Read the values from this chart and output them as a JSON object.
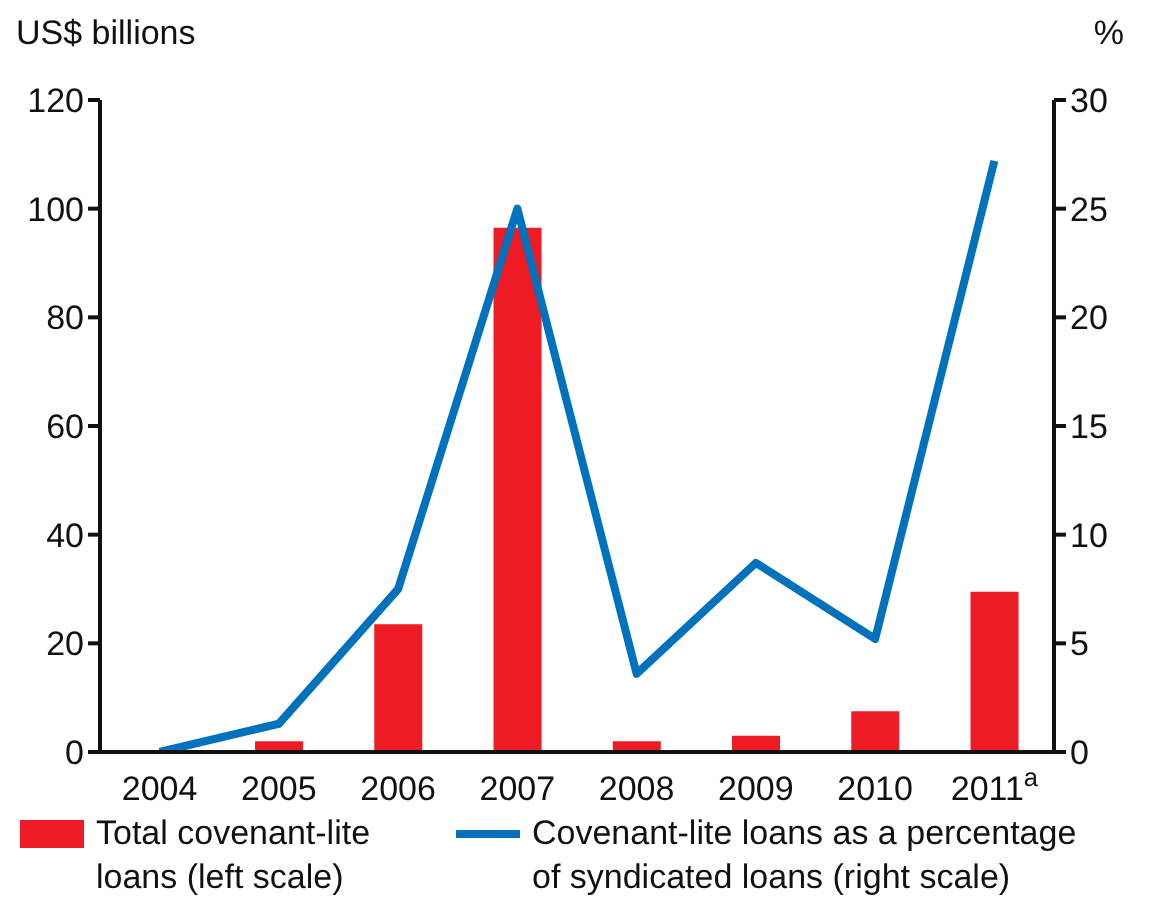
{
  "chart_data": {
    "type": "bar",
    "ylabel": "US$ billions",
    "y2label": "%",
    "categories": [
      "2004",
      "2005",
      "2006",
      "2007",
      "2008",
      "2009",
      "2010",
      "2011$^{a}$"
    ],
    "series": [
      {
        "name": "Total covenant-lite loans (left scale)",
        "color": "#ed1c24",
        "values": [
          0,
          2,
          23.5,
          96.5,
          2,
          3,
          7.5,
          29.5
        ]
      },
      {
        "name": "Covenant-lite loans as a percentage of syndicated loans (right scale)",
        "type": "line",
        "axis": "y2",
        "color": "#0071bc",
        "values": [
          0,
          1.3,
          7.5,
          25,
          3.6,
          8.7,
          5.2,
          27.2
        ]
      }
    ],
    "ylim": [
      0,
      120
    ],
    "yticks": [
      0,
      20,
      40,
      60,
      80,
      100,
      120
    ],
    "y2lim": [
      0,
      30
    ],
    "y2ticks": [
      0,
      5,
      10,
      15,
      20,
      25,
      30
    ],
    "grid": false,
    "legend": "bottom",
    "marker": "none",
    "line_style": "solid"
  }
}
